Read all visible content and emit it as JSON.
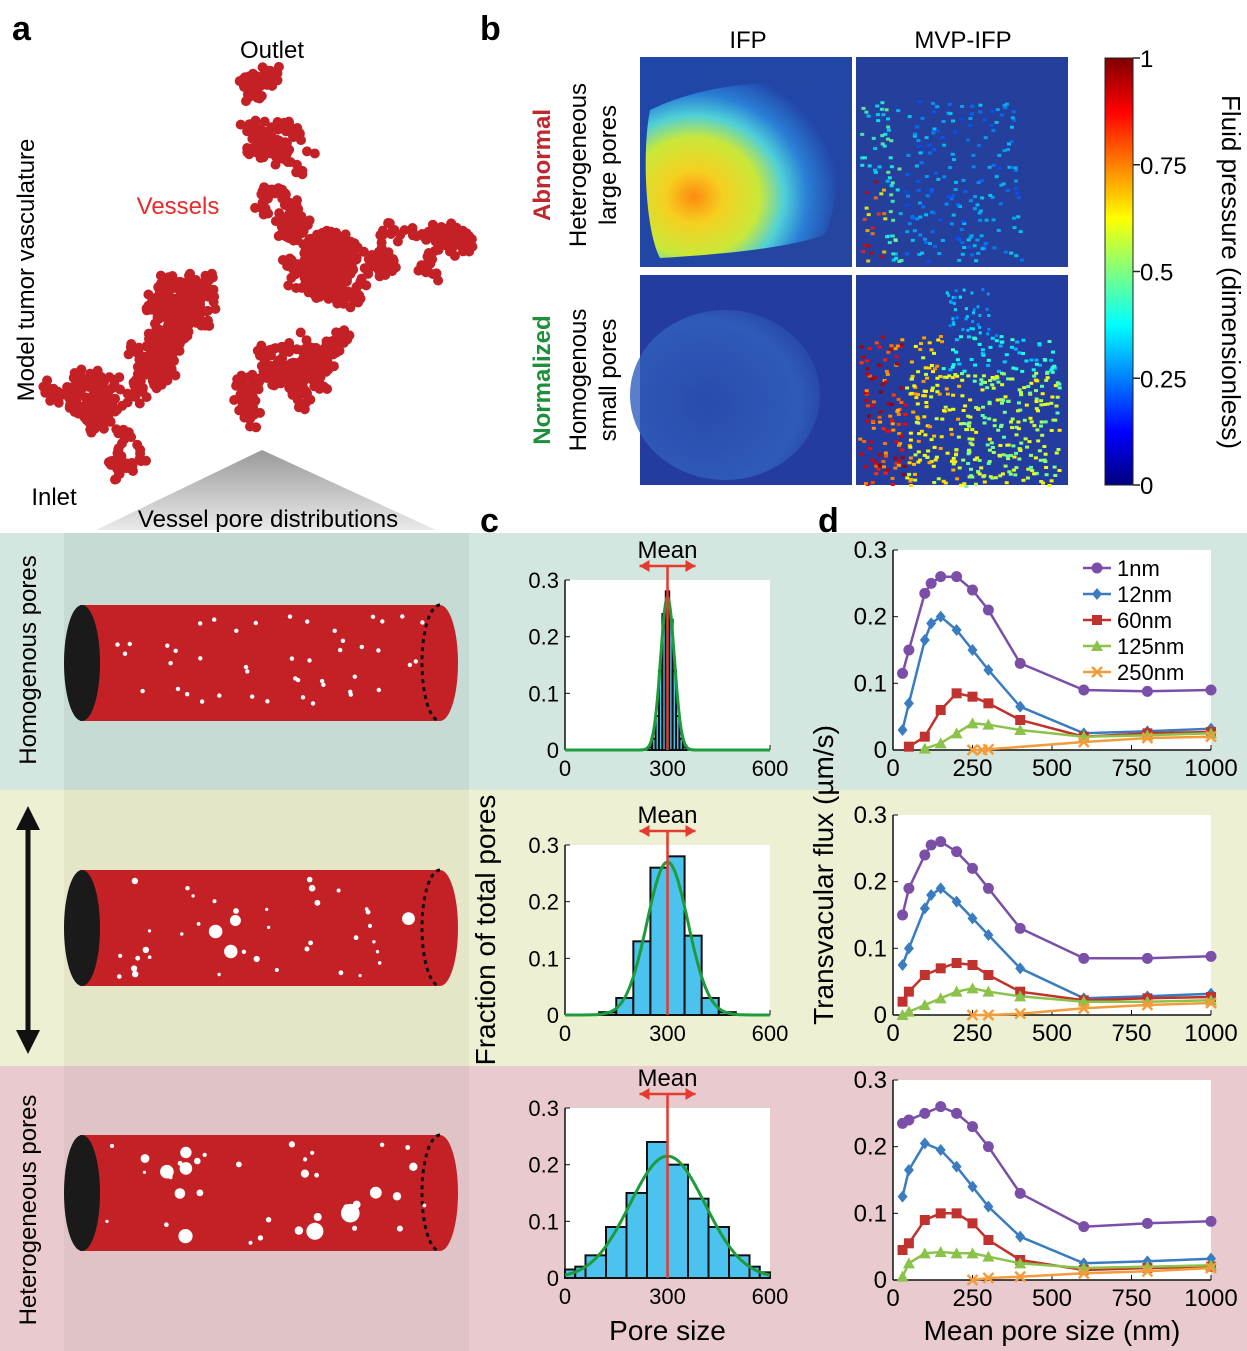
{
  "panel_letters": {
    "a": "a",
    "b": "b",
    "c": "c",
    "d": "d"
  },
  "panel_a": {
    "outlet": "Outlet",
    "inlet": "Inlet",
    "vessels": "Vessels",
    "side_label": "Model tumor vasculature",
    "distributions_title": "Vessel pore distributions",
    "row_labels": [
      "Homogenous pores",
      "Heterogeneous pores"
    ],
    "vessel_color": "#c42126",
    "rows": [
      {
        "name": "Homogenous",
        "bg": "#d3e6df"
      },
      {
        "name": "Intermediate",
        "bg": "#eef0d4"
      },
      {
        "name": "Heterogeneous",
        "bg": "#e9cbcf"
      }
    ]
  },
  "panel_b": {
    "col_titles": [
      "IFP",
      "MVP-IFP"
    ],
    "row_status": [
      "Abnormal",
      "Normalized"
    ],
    "row_status_colors": [
      "#c0282d",
      "#1e8f3a"
    ],
    "row_desc": [
      [
        "Heterogeneous",
        "large pores"
      ],
      [
        "Homogenous",
        "small pores"
      ]
    ],
    "colorbar": {
      "label": "Fluid pressure (dimensionless)",
      "ticks": [
        "0",
        "0.25",
        "0.5",
        "0.75",
        "1"
      ],
      "tick_values": [
        0,
        0.25,
        0.5,
        0.75,
        1
      ],
      "colormap": "jet"
    }
  },
  "chart_data": [
    {
      "id": "c-homogeneous",
      "type": "bar",
      "annotation": "Mean",
      "xlabel": "",
      "ylabel": "",
      "xlim": [
        0,
        600
      ],
      "ylim": [
        0,
        0.3
      ],
      "xticks": [
        "0",
        "300",
        "600"
      ],
      "yticks": [
        "0",
        "0.1",
        "0.2",
        "0.3"
      ],
      "bin_centers": [
        250,
        260,
        270,
        280,
        290,
        300,
        310,
        320,
        330,
        340,
        350
      ],
      "values": [
        0.005,
        0.02,
        0.06,
        0.14,
        0.24,
        0.28,
        0.23,
        0.14,
        0.06,
        0.02,
        0.005
      ],
      "bin_width": 10,
      "mean": 300,
      "fit_sigma": 20,
      "fit_peak": 0.27
    },
    {
      "id": "c-intermediate",
      "type": "bar",
      "annotation": "Mean",
      "xlabel": "",
      "ylabel": "Fraction of total pores",
      "xlim": [
        0,
        600
      ],
      "ylim": [
        0,
        0.3
      ],
      "xticks": [
        "0",
        "300",
        "600"
      ],
      "yticks": [
        "0",
        "0.1",
        "0.2",
        "0.3"
      ],
      "bin_centers": [
        125,
        175,
        225,
        275,
        325,
        375,
        425,
        475
      ],
      "values": [
        0.005,
        0.03,
        0.13,
        0.26,
        0.28,
        0.14,
        0.03,
        0.005
      ],
      "bin_width": 50,
      "mean": 300,
      "fit_sigma": 60,
      "fit_peak": 0.27
    },
    {
      "id": "c-heterogeneous",
      "type": "bar",
      "annotation": "Mean",
      "xlabel": "Pore size",
      "ylabel": "",
      "xlim": [
        0,
        600
      ],
      "ylim": [
        0,
        0.3
      ],
      "xticks": [
        "0",
        "300",
        "600"
      ],
      "yticks": [
        "0",
        "0.1",
        "0.2",
        "0.3"
      ],
      "bin_centers": [
        15,
        45,
        90,
        150,
        210,
        270,
        330,
        390,
        450,
        510,
        555,
        585
      ],
      "values": [
        0.015,
        0.02,
        0.04,
        0.09,
        0.15,
        0.24,
        0.2,
        0.14,
        0.09,
        0.04,
        0.02,
        0.01
      ],
      "bin_edges": [
        0,
        30,
        60,
        120,
        180,
        240,
        300,
        360,
        420,
        480,
        540,
        570,
        600
      ],
      "mean": 300,
      "fit_sigma": 110,
      "fit_peak": 0.215
    },
    {
      "id": "d-homogeneous",
      "type": "line",
      "xlabel": "",
      "ylabel": "",
      "xlim": [
        0,
        1000
      ],
      "ylim": [
        0,
        0.3
      ],
      "xticks": [
        "0",
        "250",
        "500",
        "750",
        "1000"
      ],
      "yticks": [
        "0",
        "0.1",
        "0.2",
        "0.3"
      ],
      "legend_position": "top-right",
      "series": [
        {
          "name": "1nm",
          "color": "#7b4fa8",
          "marker": "circle",
          "x": [
            30,
            50,
            100,
            120,
            150,
            200,
            250,
            300,
            400,
            600,
            800,
            1000
          ],
          "y": [
            0.115,
            0.15,
            0.235,
            0.25,
            0.26,
            0.26,
            0.24,
            0.21,
            0.13,
            0.09,
            0.088,
            0.09
          ]
        },
        {
          "name": "12nm",
          "color": "#3a7cc0",
          "marker": "diamond",
          "x": [
            30,
            50,
            100,
            120,
            150,
            200,
            250,
            300,
            400,
            600,
            800,
            1000
          ],
          "y": [
            0.03,
            0.07,
            0.165,
            0.19,
            0.2,
            0.18,
            0.15,
            0.12,
            0.065,
            0.025,
            0.028,
            0.032
          ]
        },
        {
          "name": "60nm",
          "color": "#c0322d",
          "marker": "square",
          "x": [
            50,
            100,
            150,
            200,
            250,
            300,
            400,
            600,
            800,
            1000
          ],
          "y": [
            0.005,
            0.02,
            0.06,
            0.085,
            0.08,
            0.07,
            0.045,
            0.02,
            0.025,
            0.027
          ]
        },
        {
          "name": "125nm",
          "color": "#8bc34a",
          "marker": "triangle",
          "x": [
            100,
            150,
            200,
            250,
            300,
            400,
            600,
            800,
            1000
          ],
          "y": [
            0.002,
            0.01,
            0.025,
            0.04,
            0.038,
            0.03,
            0.02,
            0.022,
            0.025
          ]
        },
        {
          "name": "250nm",
          "color": "#f39c3c",
          "marker": "x",
          "x": [
            250,
            280,
            300,
            600,
            800,
            1000
          ],
          "y": [
            0.0,
            0.0,
            0.001,
            0.012,
            0.018,
            0.02
          ]
        }
      ]
    },
    {
      "id": "d-intermediate",
      "type": "line",
      "xlabel": "",
      "ylabel": "Transvacular flux (µm/s)",
      "xlim": [
        0,
        1000
      ],
      "ylim": [
        0,
        0.3
      ],
      "xticks": [
        "0",
        "250",
        "500",
        "750",
        "1000"
      ],
      "yticks": [
        "0",
        "0.1",
        "0.2",
        "0.3"
      ],
      "series": [
        {
          "name": "1nm",
          "color": "#7b4fa8",
          "marker": "circle",
          "x": [
            30,
            50,
            100,
            120,
            150,
            200,
            250,
            300,
            400,
            600,
            800,
            1000
          ],
          "y": [
            0.15,
            0.19,
            0.24,
            0.255,
            0.26,
            0.245,
            0.22,
            0.19,
            0.13,
            0.085,
            0.085,
            0.088
          ]
        },
        {
          "name": "12nm",
          "color": "#3a7cc0",
          "marker": "diamond",
          "x": [
            30,
            50,
            100,
            120,
            150,
            200,
            250,
            300,
            400,
            600,
            800,
            1000
          ],
          "y": [
            0.075,
            0.1,
            0.16,
            0.18,
            0.19,
            0.17,
            0.145,
            0.12,
            0.07,
            0.025,
            0.028,
            0.032
          ]
        },
        {
          "name": "60nm",
          "color": "#c0322d",
          "marker": "square",
          "x": [
            30,
            50,
            100,
            150,
            200,
            250,
            300,
            400,
            600,
            800,
            1000
          ],
          "y": [
            0.02,
            0.035,
            0.06,
            0.07,
            0.078,
            0.075,
            0.06,
            0.035,
            0.022,
            0.025,
            0.027
          ]
        },
        {
          "name": "125nm",
          "color": "#8bc34a",
          "marker": "triangle",
          "x": [
            30,
            50,
            100,
            150,
            200,
            250,
            300,
            400,
            600,
            800,
            1000
          ],
          "y": [
            0.0,
            0.005,
            0.015,
            0.025,
            0.035,
            0.04,
            0.035,
            0.028,
            0.02,
            0.02,
            0.022
          ]
        },
        {
          "name": "250nm",
          "color": "#f39c3c",
          "marker": "x",
          "x": [
            250,
            300,
            400,
            600,
            800,
            1000
          ],
          "y": [
            0.0,
            0.0,
            0.002,
            0.01,
            0.015,
            0.018
          ]
        }
      ]
    },
    {
      "id": "d-heterogeneous",
      "type": "line",
      "xlabel": "Mean pore size (nm)",
      "ylabel": "",
      "xlim": [
        0,
        1000
      ],
      "ylim": [
        0,
        0.3
      ],
      "xticks": [
        "0",
        "250",
        "500",
        "750",
        "1000"
      ],
      "yticks": [
        "0",
        "0.1",
        "0.2",
        "0.3"
      ],
      "series": [
        {
          "name": "1nm",
          "color": "#7b4fa8",
          "marker": "circle",
          "x": [
            30,
            50,
            100,
            150,
            200,
            250,
            300,
            400,
            600,
            800,
            1000
          ],
          "y": [
            0.235,
            0.24,
            0.25,
            0.26,
            0.25,
            0.23,
            0.2,
            0.13,
            0.08,
            0.085,
            0.088
          ]
        },
        {
          "name": "12nm",
          "color": "#3a7cc0",
          "marker": "diamond",
          "x": [
            30,
            50,
            100,
            150,
            200,
            250,
            300,
            400,
            600,
            800,
            1000
          ],
          "y": [
            0.125,
            0.165,
            0.205,
            0.195,
            0.17,
            0.14,
            0.11,
            0.065,
            0.025,
            0.028,
            0.032
          ]
        },
        {
          "name": "60nm",
          "color": "#c0322d",
          "marker": "square",
          "x": [
            30,
            50,
            100,
            150,
            200,
            250,
            300,
            400,
            600,
            800,
            1000
          ],
          "y": [
            0.045,
            0.055,
            0.09,
            0.1,
            0.1,
            0.085,
            0.06,
            0.03,
            0.015,
            0.018,
            0.02
          ]
        },
        {
          "name": "125nm",
          "color": "#8bc34a",
          "marker": "triangle",
          "x": [
            30,
            50,
            100,
            150,
            200,
            250,
            300,
            400,
            600,
            800,
            1000
          ],
          "y": [
            0.005,
            0.025,
            0.04,
            0.042,
            0.04,
            0.04,
            0.035,
            0.025,
            0.018,
            0.02,
            0.022
          ]
        },
        {
          "name": "250nm",
          "color": "#f39c3c",
          "marker": "x",
          "x": [
            250,
            300,
            400,
            600,
            800,
            1000
          ],
          "y": [
            0.0,
            0.003,
            0.005,
            0.01,
            0.013,
            0.018
          ]
        }
      ]
    }
  ]
}
